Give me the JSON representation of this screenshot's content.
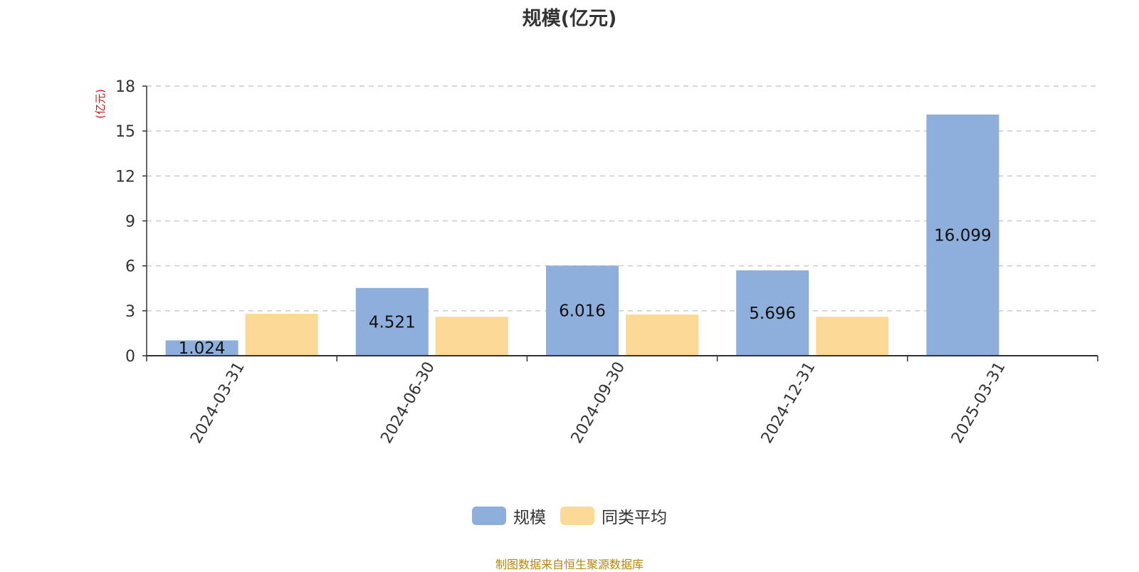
{
  "chart_data": {
    "type": "bar",
    "title": "规模(亿元)",
    "ylabel": "(亿元)",
    "xlabel": "",
    "categories": [
      "2024-03-31",
      "2024-06-30",
      "2024-09-30",
      "2024-12-31",
      "2025-03-31"
    ],
    "yticks": [
      "0",
      "3",
      "6",
      "9",
      "12",
      "15",
      "18"
    ],
    "ylim": [
      0,
      18
    ],
    "grid": true,
    "legend_position": "bottom-center",
    "series": [
      {
        "name": "规模",
        "color": "#8eaedb",
        "values": [
          1.024,
          4.521,
          6.016,
          5.696,
          16.099
        ],
        "labels": [
          "1.024",
          "4.521",
          "6.016",
          "5.696",
          "16.099"
        ]
      },
      {
        "name": "同类平均",
        "color": "#fdd998",
        "values": [
          2.8,
          2.6,
          2.75,
          2.6,
          null
        ]
      }
    ]
  },
  "source_text": "制图数据来自恒生聚源数据库"
}
